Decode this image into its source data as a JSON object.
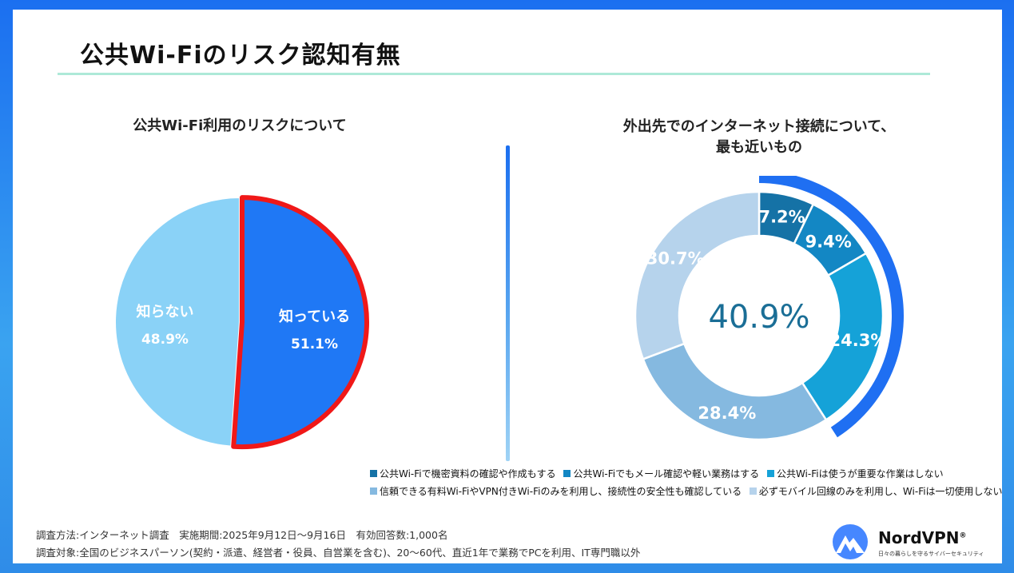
{
  "title": "公共Wi-Fiのリスク認知有無",
  "chart_data": [
    {
      "type": "pie",
      "title": "公共Wi-Fi利用のリスクについて",
      "slices": [
        {
          "label": "知っている",
          "value": 51.1,
          "display": "51.1%",
          "color": "#1f78f5",
          "highlighted": true
        },
        {
          "label": "知らない",
          "value": 48.9,
          "display": "48.9%",
          "color": "#8ad2f7",
          "highlighted": false
        }
      ]
    },
    {
      "type": "pie",
      "variant": "donut",
      "title_line1": "外出先でのインターネット接続について、",
      "title_line2": "最も近いもの",
      "center_label": "40.9%",
      "slices": [
        {
          "label": "公共Wi-Fiで機密資料の確認や作成もする",
          "value": 7.2,
          "display": "7.2%",
          "color": "#1572a6"
        },
        {
          "label": "公共Wi-Fiでもメール確認や軽い業務はする",
          "value": 9.4,
          "display": "9.4%",
          "color": "#1387c4"
        },
        {
          "label": "公共Wi-Fiは使うが重要な作業はしない",
          "value": 24.3,
          "display": "24.3%",
          "color": "#15a2d8"
        },
        {
          "label": "信頼できる有料Wi-FiやVPN付きWi-Fiのみを利用し、接続性の安全性も確認している",
          "value": 28.4,
          "display": "28.4%",
          "color": "#85b9e0"
        },
        {
          "label": "必ずモバイル回線のみを利用し、Wi-Fiは一切使用しない",
          "value": 30.7,
          "display": "30.7%",
          "color": "#b6d3ec"
        }
      ],
      "highlight_arc_value": 40.9,
      "highlight_arc_color": "#1f6ff2"
    }
  ],
  "footer": {
    "line1": "調査方法:インターネット調査　実施期間:2025年9月12日～9月16日　有効回答数:1,000名",
    "line2": "調査対象:全国のビジネスパーソン(契約・派遣、経営者・役員、自営業を含む)、20～60代、直近1年で業務でPCを利用、IT専門職以外"
  },
  "logo": {
    "name": "NordVPN",
    "reg": "®",
    "tagline": "日々の暮らしを守るサイバーセキュリティ",
    "color": "#4687ff"
  }
}
